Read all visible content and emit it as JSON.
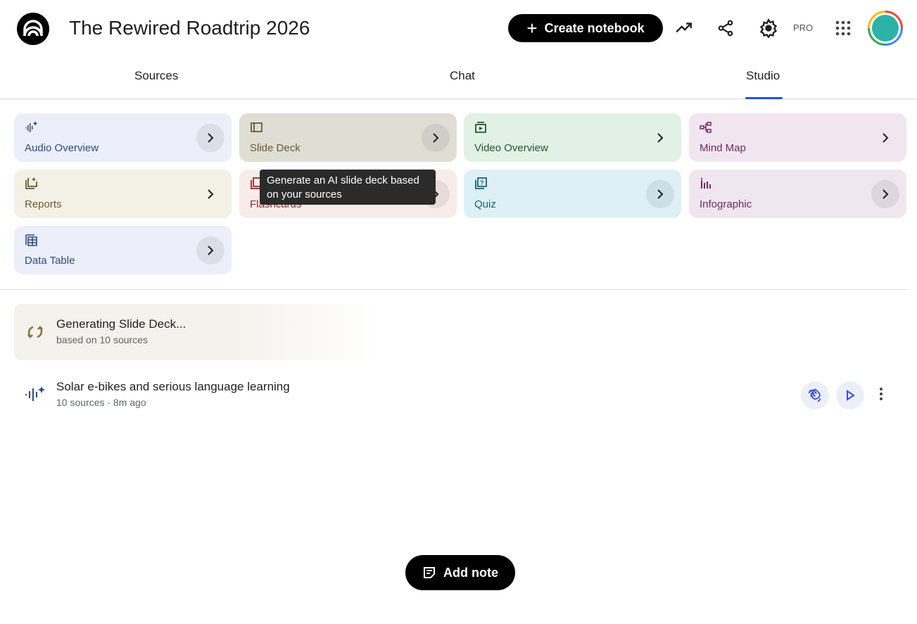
{
  "header": {
    "title": "The Rewired Roadtrip 2026",
    "create_label": "Create notebook",
    "pro_label": "PRO"
  },
  "tabs": [
    {
      "label": "Sources"
    },
    {
      "label": "Chat"
    },
    {
      "label": "Studio",
      "active": true
    }
  ],
  "studio_cards": [
    {
      "label": "Audio Overview",
      "icon": "audio-waveform-sparkle-icon",
      "bg": "#eceff9",
      "fg": "#2b4a87"
    },
    {
      "label": "Slide Deck",
      "icon": "slides-icon",
      "bg": "#dfded5",
      "fg": "#6b5a2e"
    },
    {
      "label": "Video Overview",
      "icon": "video-icon",
      "bg": "#e2f1e5",
      "fg": "#1f5a2e"
    },
    {
      "label": "Mind Map",
      "icon": "mind-map-icon",
      "bg": "#f1e6ef",
      "fg": "#6e2a63"
    },
    {
      "label": "Reports",
      "icon": "report-sparkle-icon",
      "bg": "#f3f1e6",
      "fg": "#6b5a2e"
    },
    {
      "label": "Flashcards",
      "icon": "flashcards-icon",
      "bg": "#f8ece9",
      "fg": "#8a2f2a"
    },
    {
      "label": "Quiz",
      "icon": "quiz-icon",
      "bg": "#dcf0f6",
      "fg": "#1c5f7a"
    },
    {
      "label": "Infographic",
      "icon": "infographic-icon",
      "bg": "#f0e6ef",
      "fg": "#6e2a63"
    },
    {
      "label": "Data Table",
      "icon": "table-icon",
      "bg": "#eceff9",
      "fg": "#2b4a87"
    }
  ],
  "tooltip": "Generate an AI slide deck based on your sources",
  "generating": {
    "title": "Generating Slide Deck...",
    "subtitle": "based on 10 sources"
  },
  "outputs": [
    {
      "title": "Solar e-bikes and serious language learning",
      "subtitle": "10 sources · 8m ago"
    }
  ],
  "add_note_label": "Add note",
  "accent": "#1a57d6"
}
